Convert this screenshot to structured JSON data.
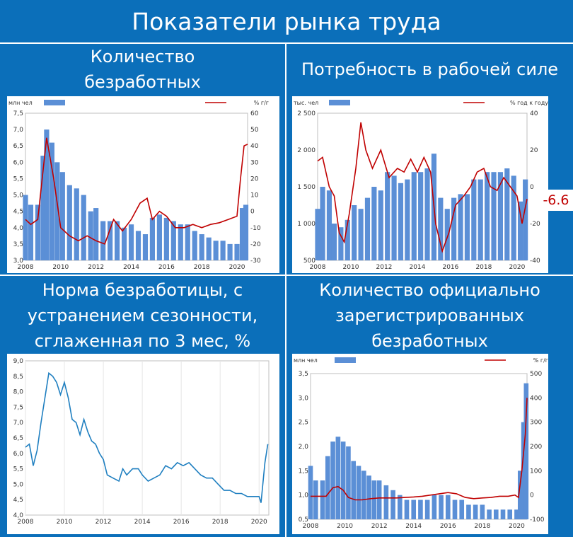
{
  "title": "Показатели рынка труда",
  "panels": [
    {
      "title_lines": [
        "Количество",
        "безработных"
      ]
    },
    {
      "title_lines": [
        "Потребность в рабочей силе"
      ]
    },
    {
      "title_lines": [
        "Норма безработицы, с",
        "устранением сезонности,",
        "сглаженная по 3 мес, %"
      ]
    },
    {
      "title_lines": [
        "Количество официально",
        "зарегистрированных",
        "безработных"
      ]
    }
  ],
  "callout": "-6.6",
  "colors": {
    "bar": "#5b8fd6",
    "line": "#c00000",
    "line_blue": "#1f7fc0",
    "background": "#0b6fba"
  },
  "chart_data": [
    {
      "type": "bar+line",
      "left_unit": "млн чел",
      "right_unit": "% г/г",
      "x_ticks": [
        "2008",
        "2010",
        "2012",
        "2014",
        "2016",
        "2018",
        "2020"
      ],
      "x_range": [
        2008,
        2020.6
      ],
      "y_left": {
        "range": [
          3.0,
          7.5
        ],
        "ticks": [
          "3,0",
          "3,5",
          "4,0",
          "4,5",
          "5,0",
          "5,5",
          "6,0",
          "6,5",
          "7,0",
          "7,5"
        ]
      },
      "y_right": {
        "range": [
          -30,
          60
        ],
        "ticks": [
          "-30",
          "-20",
          "-10",
          "0",
          "10",
          "20",
          "30",
          "40",
          "50",
          "60"
        ]
      },
      "bars_axis": "left",
      "bars": [
        [
          2008.0,
          5.0
        ],
        [
          2008.3,
          4.7
        ],
        [
          2008.7,
          4.7
        ],
        [
          2009.0,
          6.2
        ],
        [
          2009.2,
          7.0
        ],
        [
          2009.5,
          6.6
        ],
        [
          2009.8,
          6.0
        ],
        [
          2010.1,
          5.7
        ],
        [
          2010.5,
          5.3
        ],
        [
          2010.9,
          5.2
        ],
        [
          2011.3,
          5.0
        ],
        [
          2011.7,
          4.5
        ],
        [
          2012.0,
          4.6
        ],
        [
          2012.4,
          4.2
        ],
        [
          2012.8,
          4.2
        ],
        [
          2013.2,
          4.2
        ],
        [
          2013.6,
          4.0
        ],
        [
          2014.0,
          4.1
        ],
        [
          2014.4,
          3.9
        ],
        [
          2014.8,
          3.8
        ],
        [
          2015.2,
          4.3
        ],
        [
          2015.6,
          4.4
        ],
        [
          2016.0,
          4.3
        ],
        [
          2016.4,
          4.2
        ],
        [
          2016.8,
          4.1
        ],
        [
          2017.2,
          4.1
        ],
        [
          2017.6,
          3.9
        ],
        [
          2018.0,
          3.8
        ],
        [
          2018.4,
          3.7
        ],
        [
          2018.8,
          3.6
        ],
        [
          2019.2,
          3.6
        ],
        [
          2019.6,
          3.5
        ],
        [
          2020.0,
          3.5
        ],
        [
          2020.3,
          4.6
        ],
        [
          2020.5,
          4.7
        ]
      ],
      "line_axis": "right",
      "line": [
        [
          2008.0,
          -5
        ],
        [
          2008.3,
          -8
        ],
        [
          2008.7,
          -5
        ],
        [
          2009.0,
          25
        ],
        [
          2009.2,
          45
        ],
        [
          2009.6,
          20
        ],
        [
          2010.0,
          -10
        ],
        [
          2010.5,
          -15
        ],
        [
          2011.0,
          -18
        ],
        [
          2011.5,
          -15
        ],
        [
          2012.0,
          -18
        ],
        [
          2012.5,
          -20
        ],
        [
          2013.0,
          -5
        ],
        [
          2013.5,
          -12
        ],
        [
          2014.0,
          -5
        ],
        [
          2014.5,
          5
        ],
        [
          2014.9,
          8
        ],
        [
          2015.2,
          -5
        ],
        [
          2015.6,
          0
        ],
        [
          2016.0,
          -3
        ],
        [
          2016.5,
          -10
        ],
        [
          2017.0,
          -10
        ],
        [
          2017.5,
          -8
        ],
        [
          2018.0,
          -10
        ],
        [
          2018.5,
          -8
        ],
        [
          2019.0,
          -7
        ],
        [
          2019.5,
          -5
        ],
        [
          2020.0,
          -3
        ],
        [
          2020.2,
          20
        ],
        [
          2020.4,
          40
        ],
        [
          2020.6,
          41
        ]
      ]
    },
    {
      "type": "bar+line",
      "left_unit": "тыс. чел",
      "right_unit": "% год к году",
      "x_ticks": [
        "2008",
        "2010",
        "2012",
        "2014",
        "2016",
        "2018",
        "2020"
      ],
      "x_range": [
        2008,
        2020.6
      ],
      "y_left": {
        "range": [
          500,
          2500
        ],
        "ticks": [
          "500",
          "1 000",
          "1 500",
          "2 000",
          "2 500"
        ]
      },
      "y_right": {
        "range": [
          -40,
          40
        ],
        "ticks": [
          "-40",
          "-20",
          "0",
          "20",
          "40"
        ]
      },
      "bars_axis": "left",
      "bars": [
        [
          2008.0,
          1200
        ],
        [
          2008.3,
          1500
        ],
        [
          2008.7,
          1450
        ],
        [
          2009.0,
          1000
        ],
        [
          2009.4,
          950
        ],
        [
          2009.8,
          1050
        ],
        [
          2010.2,
          1250
        ],
        [
          2010.6,
          1200
        ],
        [
          2011.0,
          1350
        ],
        [
          2011.4,
          1500
        ],
        [
          2011.8,
          1450
        ],
        [
          2012.2,
          1700
        ],
        [
          2012.6,
          1650
        ],
        [
          2013.0,
          1550
        ],
        [
          2013.4,
          1600
        ],
        [
          2013.8,
          1700
        ],
        [
          2014.2,
          1700
        ],
        [
          2014.6,
          1750
        ],
        [
          2015.0,
          1950
        ],
        [
          2015.4,
          1350
        ],
        [
          2015.8,
          1200
        ],
        [
          2016.2,
          1350
        ],
        [
          2016.6,
          1400
        ],
        [
          2017.0,
          1400
        ],
        [
          2017.4,
          1600
        ],
        [
          2017.8,
          1600
        ],
        [
          2018.2,
          1700
        ],
        [
          2018.6,
          1700
        ],
        [
          2019.0,
          1700
        ],
        [
          2019.4,
          1750
        ],
        [
          2019.8,
          1650
        ],
        [
          2020.2,
          1300
        ],
        [
          2020.5,
          1600
        ]
      ],
      "line_axis": "right",
      "line": [
        [
          2008.0,
          14
        ],
        [
          2008.3,
          16
        ],
        [
          2008.7,
          0
        ],
        [
          2009.0,
          -5
        ],
        [
          2009.3,
          -25
        ],
        [
          2009.6,
          -30
        ],
        [
          2009.9,
          -15
        ],
        [
          2010.3,
          10
        ],
        [
          2010.6,
          35
        ],
        [
          2010.9,
          20
        ],
        [
          2011.3,
          10
        ],
        [
          2011.8,
          20
        ],
        [
          2012.3,
          5
        ],
        [
          2012.8,
          10
        ],
        [
          2013.2,
          8
        ],
        [
          2013.6,
          15
        ],
        [
          2014.0,
          8
        ],
        [
          2014.4,
          16
        ],
        [
          2014.8,
          8
        ],
        [
          2015.1,
          -20
        ],
        [
          2015.5,
          -35
        ],
        [
          2015.9,
          -25
        ],
        [
          2016.3,
          -10
        ],
        [
          2016.8,
          -5
        ],
        [
          2017.2,
          0
        ],
        [
          2017.6,
          8
        ],
        [
          2018.0,
          10
        ],
        [
          2018.4,
          0
        ],
        [
          2018.8,
          -2
        ],
        [
          2019.2,
          5
        ],
        [
          2019.6,
          0
        ],
        [
          2020.0,
          -5
        ],
        [
          2020.3,
          -20
        ],
        [
          2020.6,
          -6.6
        ]
      ]
    },
    {
      "type": "line",
      "x_ticks": [
        "2008",
        "2010",
        "2012",
        "2014",
        "2016",
        "2018",
        "2020"
      ],
      "x_range": [
        2008,
        2020.5
      ],
      "y": {
        "range": [
          4.0,
          9.0
        ],
        "ticks": [
          "4,0",
          "4,5",
          "5,0",
          "5,5",
          "6,0",
          "6,5",
          "7,0",
          "7,5",
          "8,0",
          "8,5",
          "9,0"
        ]
      },
      "line": [
        [
          2008.0,
          6.2
        ],
        [
          2008.2,
          6.3
        ],
        [
          2008.4,
          5.6
        ],
        [
          2008.6,
          6.1
        ],
        [
          2008.8,
          7.0
        ],
        [
          2009.0,
          7.8
        ],
        [
          2009.2,
          8.6
        ],
        [
          2009.4,
          8.5
        ],
        [
          2009.6,
          8.3
        ],
        [
          2009.8,
          7.9
        ],
        [
          2010.0,
          8.3
        ],
        [
          2010.2,
          7.8
        ],
        [
          2010.4,
          7.1
        ],
        [
          2010.6,
          7.0
        ],
        [
          2010.8,
          6.6
        ],
        [
          2011.0,
          7.1
        ],
        [
          2011.2,
          6.7
        ],
        [
          2011.4,
          6.4
        ],
        [
          2011.6,
          6.3
        ],
        [
          2011.8,
          6.0
        ],
        [
          2012.0,
          5.8
        ],
        [
          2012.2,
          5.3
        ],
        [
          2012.5,
          5.2
        ],
        [
          2012.8,
          5.1
        ],
        [
          2013.0,
          5.5
        ],
        [
          2013.2,
          5.3
        ],
        [
          2013.5,
          5.5
        ],
        [
          2013.8,
          5.5
        ],
        [
          2014.0,
          5.3
        ],
        [
          2014.3,
          5.1
        ],
        [
          2014.6,
          5.2
        ],
        [
          2014.9,
          5.3
        ],
        [
          2015.2,
          5.6
        ],
        [
          2015.5,
          5.5
        ],
        [
          2015.8,
          5.7
        ],
        [
          2016.1,
          5.6
        ],
        [
          2016.4,
          5.7
        ],
        [
          2016.7,
          5.5
        ],
        [
          2017.0,
          5.3
        ],
        [
          2017.3,
          5.2
        ],
        [
          2017.6,
          5.2
        ],
        [
          2017.9,
          5.0
        ],
        [
          2018.2,
          4.8
        ],
        [
          2018.5,
          4.8
        ],
        [
          2018.8,
          4.7
        ],
        [
          2019.1,
          4.7
        ],
        [
          2019.4,
          4.6
        ],
        [
          2019.7,
          4.6
        ],
        [
          2020.0,
          4.6
        ],
        [
          2020.1,
          4.4
        ],
        [
          2020.3,
          5.7
        ],
        [
          2020.45,
          6.3
        ]
      ]
    },
    {
      "type": "bar+line",
      "left_unit": "млн чел",
      "right_unit": "% г/г",
      "x_ticks": [
        "2008",
        "2010",
        "2012",
        "2014",
        "2016",
        "2018",
        "2020"
      ],
      "x_range": [
        2008,
        2020.6
      ],
      "y_left": {
        "range": [
          0.5,
          3.5
        ],
        "ticks": [
          "0,5",
          "1,0",
          "1,5",
          "2,0",
          "2,5",
          "3,0",
          "3,5"
        ]
      },
      "y_right": {
        "range": [
          -100,
          500
        ],
        "ticks": [
          "-100",
          "0",
          "100",
          "200",
          "300",
          "400",
          "500"
        ]
      },
      "bars_axis": "left",
      "bars": [
        [
          2008.0,
          1.6
        ],
        [
          2008.3,
          1.3
        ],
        [
          2008.7,
          1.3
        ],
        [
          2009.0,
          1.8
        ],
        [
          2009.3,
          2.1
        ],
        [
          2009.6,
          2.2
        ],
        [
          2009.9,
          2.1
        ],
        [
          2010.2,
          2.0
        ],
        [
          2010.5,
          1.7
        ],
        [
          2010.8,
          1.6
        ],
        [
          2011.1,
          1.5
        ],
        [
          2011.4,
          1.4
        ],
        [
          2011.7,
          1.3
        ],
        [
          2012.0,
          1.3
        ],
        [
          2012.4,
          1.2
        ],
        [
          2012.8,
          1.1
        ],
        [
          2013.2,
          1.0
        ],
        [
          2013.6,
          0.9
        ],
        [
          2014.0,
          0.9
        ],
        [
          2014.4,
          0.9
        ],
        [
          2014.8,
          0.9
        ],
        [
          2015.2,
          1.0
        ],
        [
          2015.6,
          1.0
        ],
        [
          2016.0,
          1.0
        ],
        [
          2016.4,
          0.9
        ],
        [
          2016.8,
          0.9
        ],
        [
          2017.2,
          0.8
        ],
        [
          2017.6,
          0.8
        ],
        [
          2018.0,
          0.8
        ],
        [
          2018.4,
          0.7
        ],
        [
          2018.8,
          0.7
        ],
        [
          2019.2,
          0.7
        ],
        [
          2019.6,
          0.7
        ],
        [
          2020.0,
          0.7
        ],
        [
          2020.2,
          1.5
        ],
        [
          2020.4,
          2.5
        ],
        [
          2020.55,
          3.3
        ]
      ],
      "line_axis": "right",
      "line": [
        [
          2008.0,
          -5
        ],
        [
          2008.5,
          -5
        ],
        [
          2008.9,
          -5
        ],
        [
          2009.3,
          30
        ],
        [
          2009.6,
          35
        ],
        [
          2009.9,
          20
        ],
        [
          2010.2,
          -10
        ],
        [
          2010.6,
          -20
        ],
        [
          2011.0,
          -20
        ],
        [
          2011.5,
          -15
        ],
        [
          2012.0,
          -12
        ],
        [
          2012.5,
          -12
        ],
        [
          2013.0,
          -12
        ],
        [
          2013.5,
          -10
        ],
        [
          2014.0,
          -8
        ],
        [
          2014.5,
          -5
        ],
        [
          2015.0,
          0
        ],
        [
          2015.5,
          5
        ],
        [
          2016.0,
          10
        ],
        [
          2016.5,
          5
        ],
        [
          2017.0,
          -10
        ],
        [
          2017.5,
          -15
        ],
        [
          2018.0,
          -12
        ],
        [
          2018.5,
          -10
        ],
        [
          2019.0,
          -5
        ],
        [
          2019.5,
          -5
        ],
        [
          2019.9,
          0
        ],
        [
          2020.1,
          -10
        ],
        [
          2020.3,
          100
        ],
        [
          2020.5,
          250
        ],
        [
          2020.6,
          400
        ]
      ]
    }
  ]
}
